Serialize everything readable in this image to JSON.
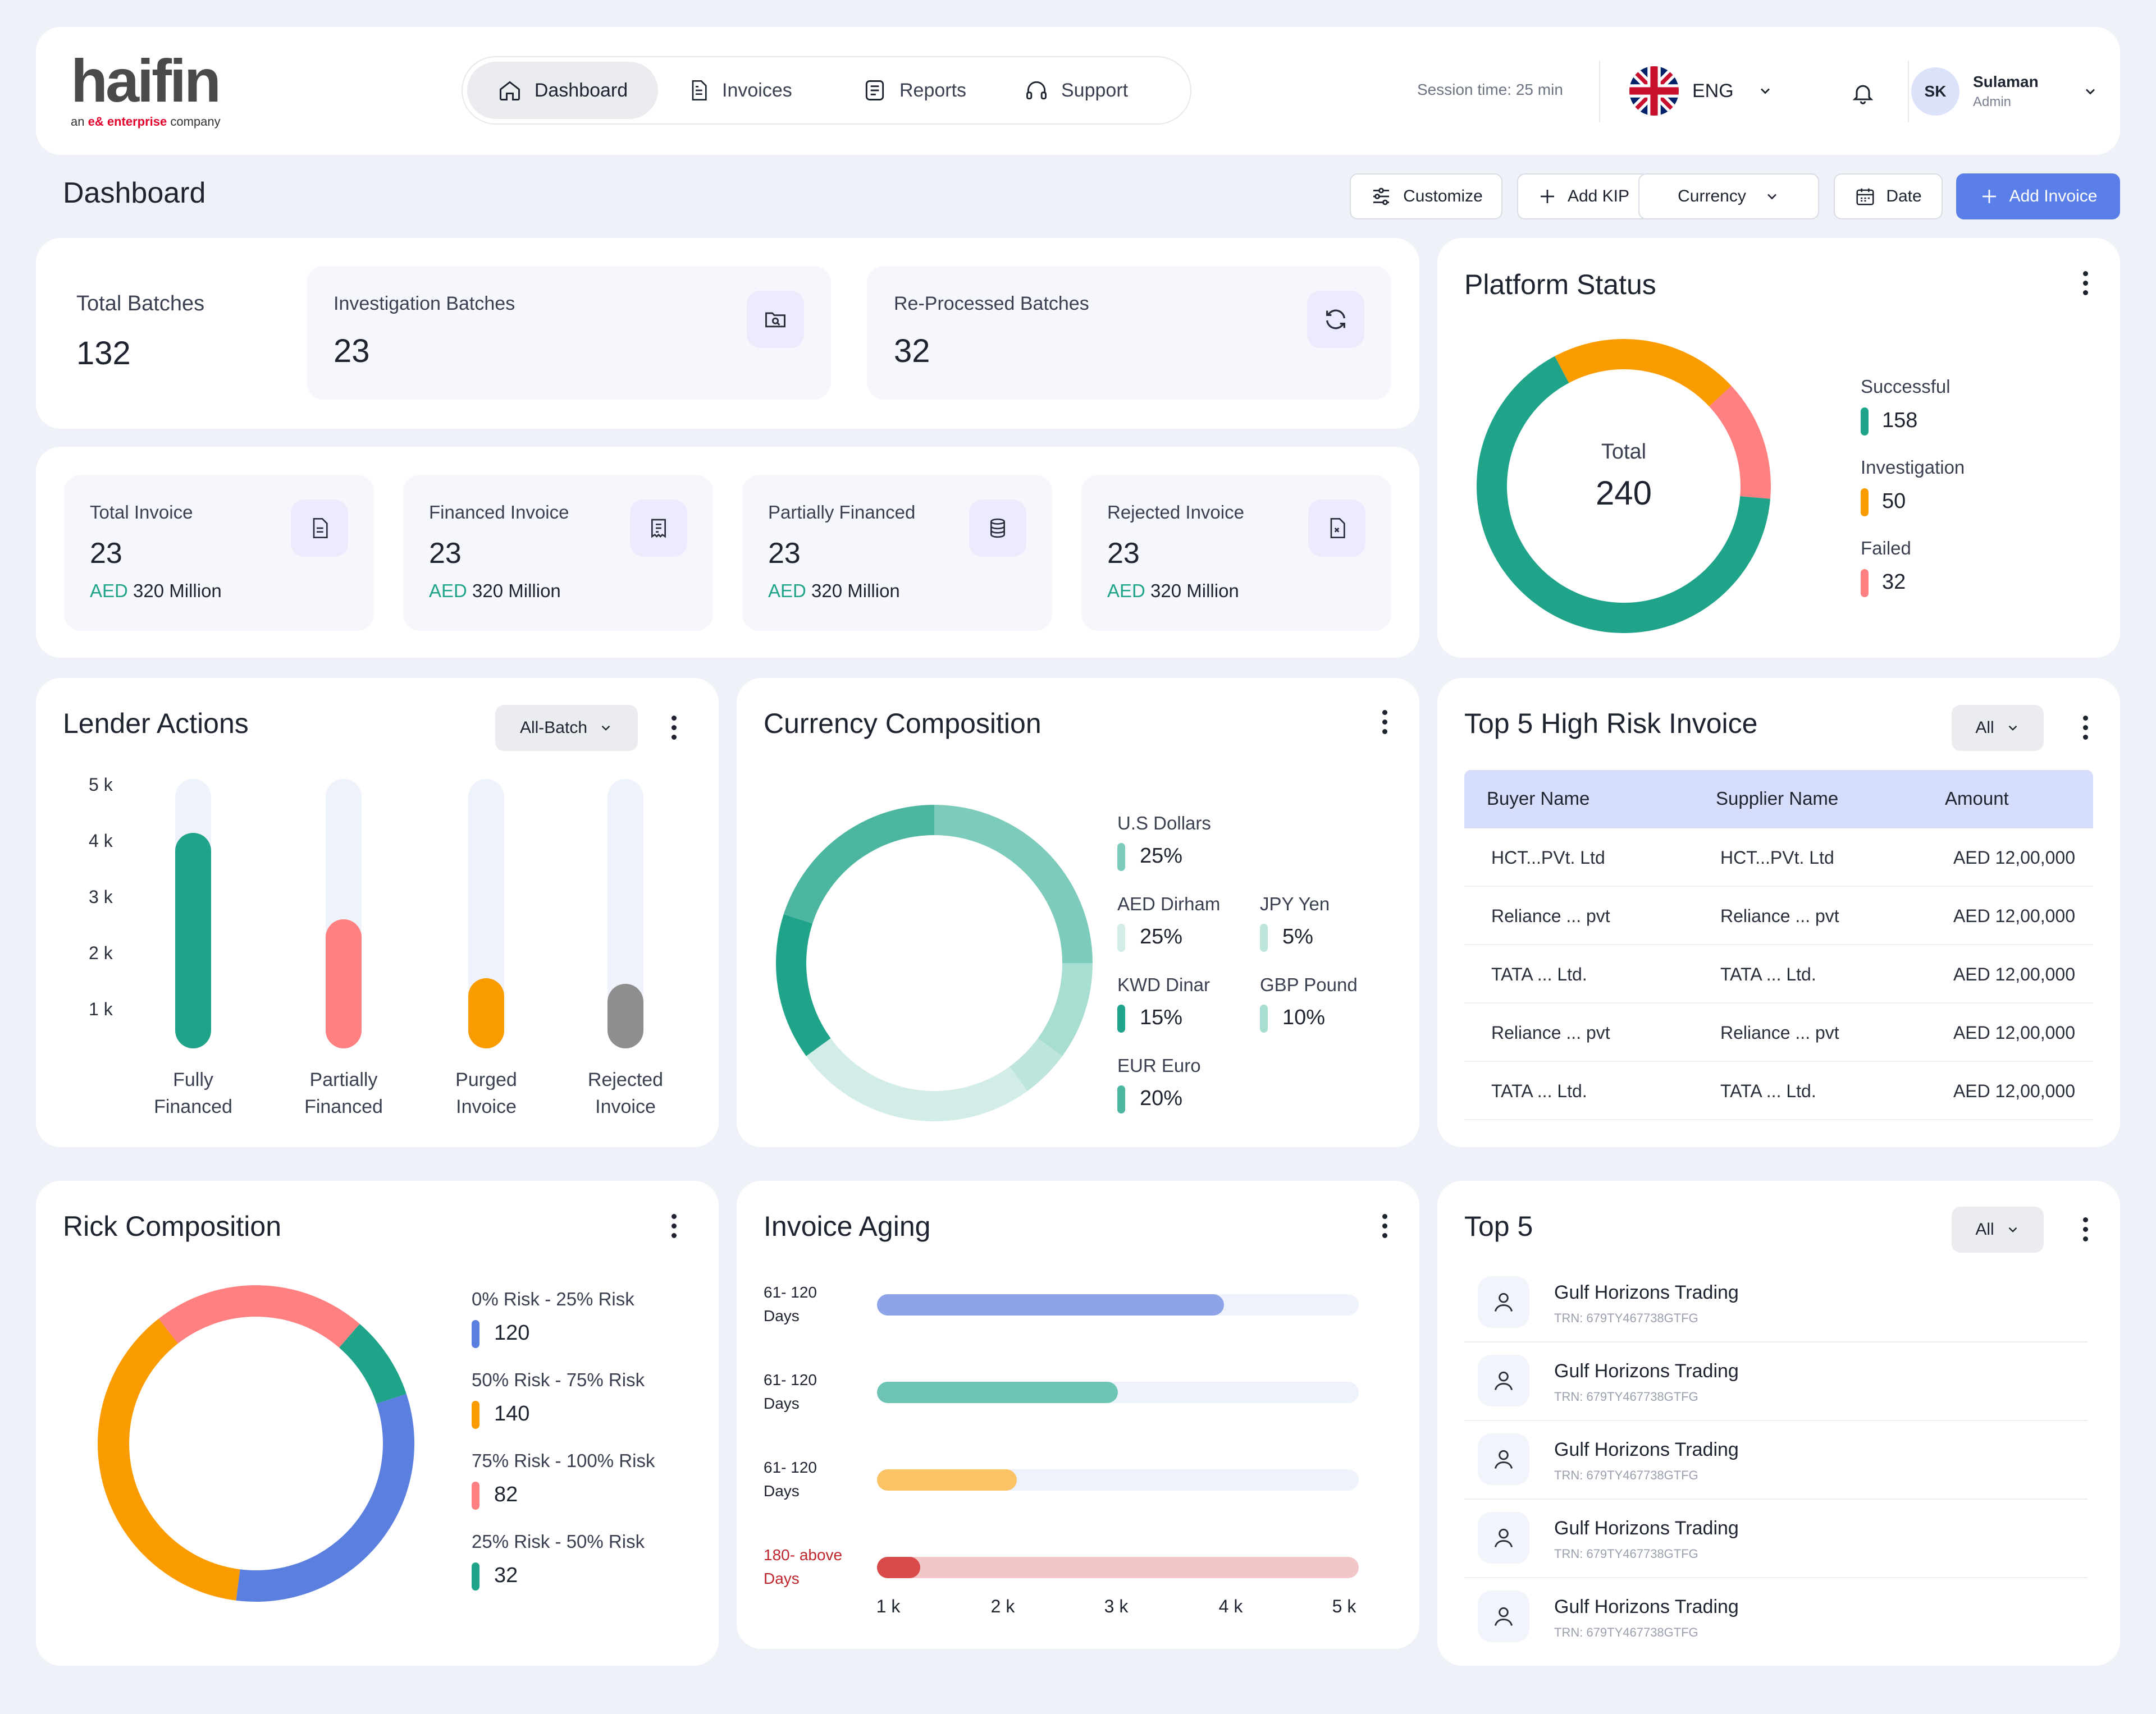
{
  "brand": {
    "name": "haifin",
    "tagline_prefix": "an",
    "tagline_brand": "e& enterprise",
    "tagline_suffix": "company",
    "accent": "#E4002B"
  },
  "nav": {
    "tabs": [
      {
        "label": "Dashboard",
        "icon": "home-icon",
        "active": true
      },
      {
        "label": "Invoices",
        "icon": "document-icon",
        "active": false
      },
      {
        "label": "Reports",
        "icon": "report-icon",
        "active": false
      },
      {
        "label": "Support",
        "icon": "headset-icon",
        "active": false
      }
    ]
  },
  "header": {
    "session": "Session time: 25 min",
    "language": "ENG",
    "user": {
      "initials": "SK",
      "name": "Sulaman",
      "role": "Admin"
    }
  },
  "page": {
    "title": "Dashboard"
  },
  "toolbar": {
    "customize": "Customize",
    "add_kip": "Add KIP",
    "currency": "Currency",
    "date": "Date",
    "add_invoice": "Add Invoice"
  },
  "batches": {
    "total": {
      "label": "Total Batches",
      "value": "132"
    },
    "investigation": {
      "label": "Investigation Batches",
      "value": "23"
    },
    "reprocessed": {
      "label": "Re-Processed Batches",
      "value": "32"
    }
  },
  "invoices": [
    {
      "label": "Total Invoice",
      "value": "23",
      "currency": "AED",
      "amount": "320 Million",
      "icon": "document-icon"
    },
    {
      "label": "Financed Invoice",
      "value": "23",
      "currency": "AED",
      "amount": "320 Million",
      "icon": "receipt-icon"
    },
    {
      "label": "Partially Financed",
      "value": "23",
      "currency": "AED",
      "amount": "320 Million",
      "icon": "database-icon"
    },
    {
      "label": "Rejected Invoice",
      "value": "23",
      "currency": "AED",
      "amount": "320 Million",
      "icon": "file-x-icon"
    }
  ],
  "platform_status": {
    "title": "Platform Status",
    "total_label": "Total",
    "total_value": "240",
    "items": [
      {
        "label": "Successful",
        "value": "158",
        "color": "#1FA48A"
      },
      {
        "label": "Investigation",
        "value": "50",
        "color": "#FA9B00"
      },
      {
        "label": "Failed",
        "value": "32",
        "color": "#FF8080"
      }
    ]
  },
  "lender_actions": {
    "title": "Lender Actions",
    "filter": "All-Batch",
    "y_ticks": [
      "5 k",
      "4 k",
      "3 k",
      "2 k",
      "1 k"
    ],
    "bars": [
      {
        "label1": "Fully",
        "label2": "Financed",
        "value": 4000,
        "color": "#1FA48A"
      },
      {
        "label1": "Partially",
        "label2": "Financed",
        "value": 2400,
        "color": "#FF8080"
      },
      {
        "label1": "Purged",
        "label2": "Invoice",
        "value": 1300,
        "color": "#FA9B00"
      },
      {
        "label1": "Rejected",
        "label2": "Invoice",
        "value": 1200,
        "color": "#8E8E8E"
      }
    ],
    "max": 5000
  },
  "currency_composition": {
    "title": "Currency Composition",
    "items": [
      {
        "label": "U.S Dollars",
        "value": "25%",
        "color": "#7DCBBB"
      },
      {
        "label": "AED Dirham",
        "value": "25%",
        "color": "#D2EDE7"
      },
      {
        "label": "JPY Yen",
        "value": "5%",
        "color": "#BEE5DC"
      },
      {
        "label": "KWD Dinar",
        "value": "15%",
        "color": "#1FA48A"
      },
      {
        "label": "GBP Pound",
        "value": "10%",
        "color": "#A8DDD2"
      },
      {
        "label": "EUR Euro",
        "value": "20%",
        "color": "#4DB6A0"
      }
    ]
  },
  "high_risk": {
    "title": "Top 5 High Risk Invoice",
    "filter": "All",
    "columns": [
      "Buyer Name",
      "Supplier Name",
      "Amount"
    ],
    "rows": [
      [
        "HCT...PVt. Ltd",
        "HCT...PVt. Ltd",
        "AED 12,00,000"
      ],
      [
        "Reliance ... pvt",
        "Reliance ... pvt",
        "AED 12,00,000"
      ],
      [
        "TATA ... Ltd.",
        "TATA ... Ltd.",
        "AED 12,00,000"
      ],
      [
        "Reliance ... pvt",
        "Reliance ... pvt",
        "AED 12,00,000"
      ],
      [
        "TATA ... Ltd.",
        "TATA ... Ltd.",
        "AED 12,00,000"
      ]
    ]
  },
  "risk_composition": {
    "title": "Rick Composition",
    "items": [
      {
        "label": "0% Risk - 25% Risk",
        "value": "120",
        "color": "#5B7FDE"
      },
      {
        "label": "50% Risk - 75% Risk",
        "value": "140",
        "color": "#FA9B00"
      },
      {
        "label": "75% Risk - 100% Risk",
        "value": "82",
        "color": "#FF8080"
      },
      {
        "label": "25% Risk - 50% Risk",
        "value": "32",
        "color": "#1FA48A"
      }
    ]
  },
  "invoice_aging": {
    "title": "Invoice Aging",
    "rows": [
      {
        "label1": "61- 120",
        "label2": "Days",
        "value": 3600,
        "color": "#8FA4E8",
        "track": "#EEF2FB",
        "warn": false
      },
      {
        "label1": "61- 120",
        "label2": "Days",
        "value": 2500,
        "color": "#6EC4B4",
        "track": "#EEF2FB",
        "warn": false
      },
      {
        "label1": "61- 120",
        "label2": "Days",
        "value": 1450,
        "color": "#FBC266",
        "track": "#EEF2FB",
        "warn": false
      },
      {
        "label1": "180- above",
        "label2": "Days",
        "value": 450,
        "color": "#D94B4B",
        "track": "#F3C7C7",
        "warn": true
      }
    ],
    "x_ticks": [
      "1 k",
      "2 k",
      "3 k",
      "4 k",
      "5 k"
    ],
    "max": 5000
  },
  "top5": {
    "title": "Top 5",
    "filter": "All",
    "items": [
      {
        "name": "Gulf Horizons Trading",
        "trn": "TRN: 679TY467738GTFG"
      },
      {
        "name": "Gulf Horizons Trading",
        "trn": "TRN: 679TY467738GTFG"
      },
      {
        "name": "Gulf Horizons Trading",
        "trn": "TRN: 679TY467738GTFG"
      },
      {
        "name": "Gulf Horizons Trading",
        "trn": "TRN: 679TY467738GTFG"
      },
      {
        "name": "Gulf Horizons Trading",
        "trn": "TRN: 679TY467738GTFG"
      }
    ]
  }
}
